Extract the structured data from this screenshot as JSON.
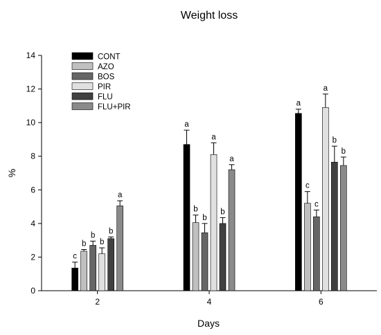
{
  "chart_data": {
    "type": "bar",
    "title": "Weight loss",
    "xlabel": "Days",
    "ylabel": "%",
    "categories": [
      "2",
      "4",
      "6"
    ],
    "xlim": [
      1,
      7
    ],
    "ylim": [
      0,
      14
    ],
    "yticks": [
      0,
      2,
      4,
      6,
      8,
      10,
      12,
      14
    ],
    "grid": false,
    "legend_position": "top-left",
    "series": [
      {
        "name": "CONT",
        "color": "#000000",
        "values": [
          1.35,
          8.7,
          10.55
        ],
        "errors": [
          0.35,
          0.85,
          0.25
        ],
        "labels": [
          "c",
          "a",
          "a"
        ]
      },
      {
        "name": "AZO",
        "color": "#c0c0c0",
        "values": [
          2.35,
          4.05,
          5.2
        ],
        "errors": [
          0.1,
          0.45,
          0.7
        ],
        "labels": [
          "b",
          "b",
          "c"
        ]
      },
      {
        "name": "BOS",
        "color": "#666666",
        "values": [
          2.7,
          3.45,
          4.4
        ],
        "errors": [
          0.25,
          0.55,
          0.4
        ],
        "labels": [
          "b",
          "b",
          "c"
        ]
      },
      {
        "name": "PIR",
        "color": "#e0e0e0",
        "values": [
          2.2,
          8.1,
          10.9
        ],
        "errors": [
          0.35,
          0.7,
          0.8
        ],
        "labels": [
          "b",
          "a",
          "a"
        ]
      },
      {
        "name": "FLU",
        "color": "#404040",
        "values": [
          3.1,
          4.0,
          7.65
        ],
        "errors": [
          0.1,
          0.35,
          0.95
        ],
        "labels": [
          "b",
          "b",
          "b"
        ]
      },
      {
        "name": "FLU+PIR",
        "color": "#8a8a8a",
        "values": [
          5.05,
          7.2,
          7.45
        ],
        "errors": [
          0.3,
          0.3,
          0.5
        ],
        "labels": [
          "a",
          "a",
          "b"
        ]
      }
    ]
  }
}
